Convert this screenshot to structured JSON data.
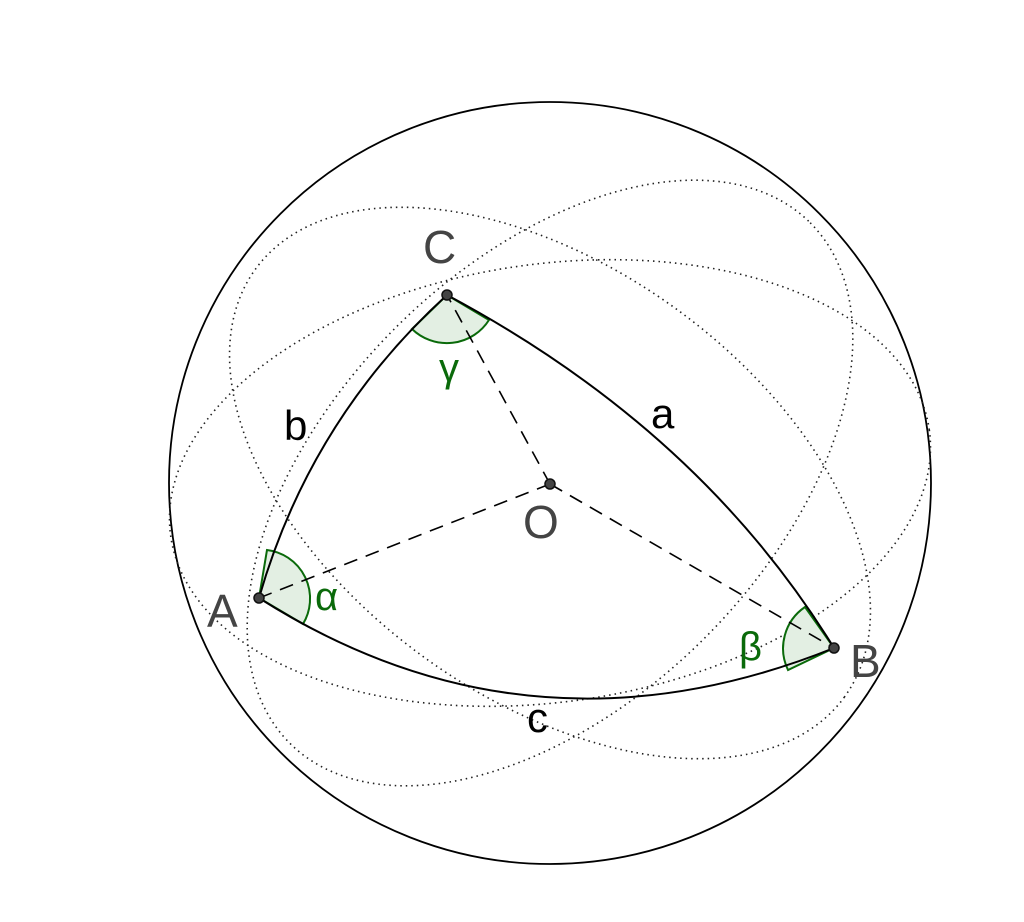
{
  "points": {
    "A": "A",
    "B": "B",
    "C": "C",
    "O": "O"
  },
  "sides": {
    "a": "a",
    "b": "b",
    "c": "c"
  },
  "angles": {
    "alpha": "α",
    "beta": "β",
    "gamma": "γ"
  },
  "colors": {
    "outline": "#000000",
    "point": "#444444",
    "angle_stroke": "#0a6a0a",
    "angle_fill": "#e3efe3"
  }
}
